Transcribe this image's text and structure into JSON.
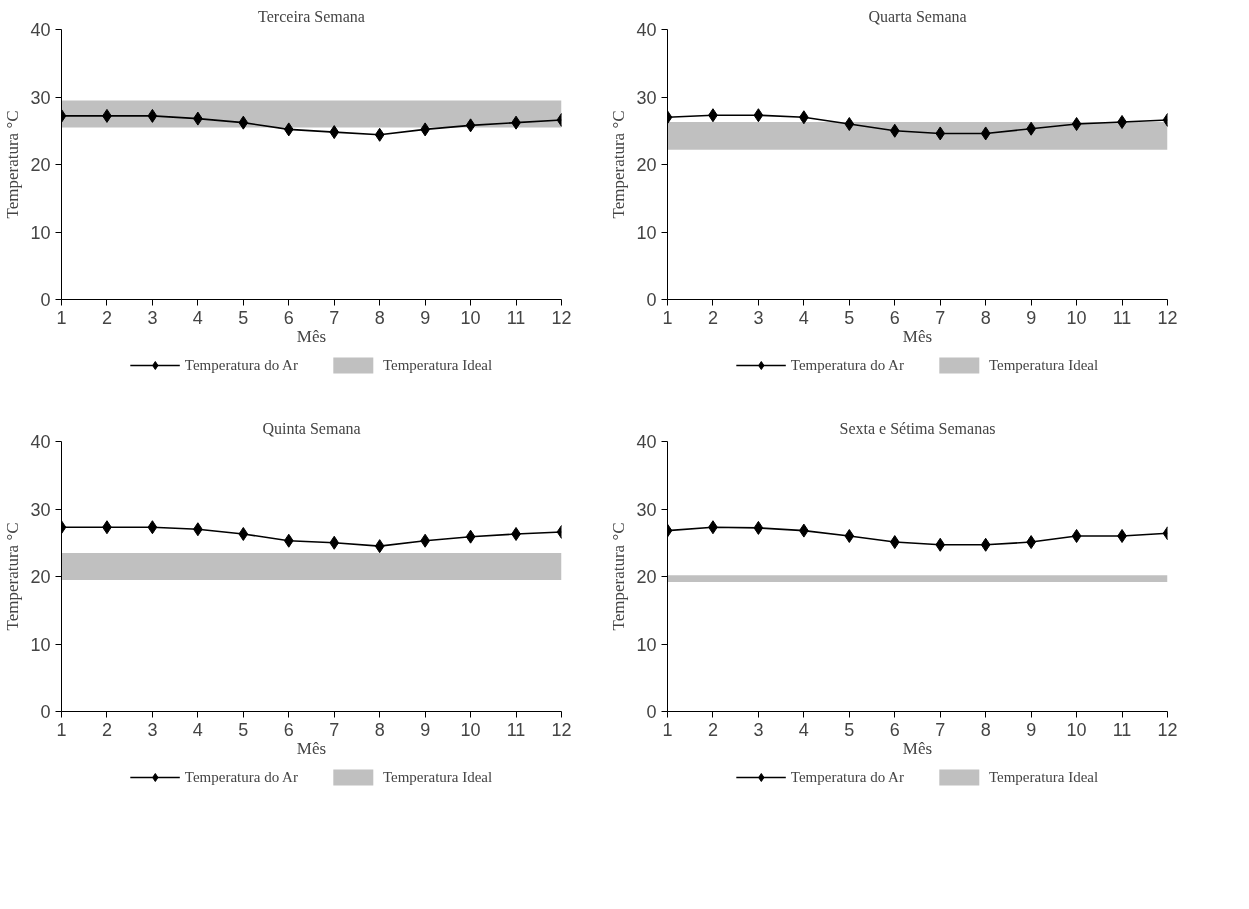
{
  "chart_data": [
    {
      "type": "line",
      "title": "Terceira Semana",
      "xlabel": "Mês",
      "ylabel": "Temperatura °C",
      "x": [
        1,
        2,
        3,
        4,
        5,
        6,
        7,
        8,
        9,
        10,
        11,
        12
      ],
      "xlim": [
        1,
        12
      ],
      "xticks": [
        1,
        2,
        3,
        4,
        5,
        6,
        7,
        8,
        9,
        10,
        11,
        12
      ],
      "ylim": [
        0,
        40
      ],
      "yticks": [
        0,
        10,
        20,
        30,
        40
      ],
      "grid": false,
      "legend": "bottom",
      "marker": "diamond",
      "line_style": "solid",
      "series": [
        {
          "name": "Temperatura do Ar",
          "color": "#000000",
          "values": [
            27.2,
            27.2,
            27.2,
            26.8,
            26.2,
            25.2,
            24.8,
            24.4,
            25.2,
            25.8,
            26.2,
            26.6
          ]
        }
      ],
      "bands": [
        {
          "axis": "y",
          "from": 25.5,
          "to": 29.5,
          "label": "Temperatura Ideal",
          "color": "#c0c0c0"
        }
      ]
    },
    {
      "type": "line",
      "title": "Quarta Semana",
      "xlabel": "Mês",
      "ylabel": "Temperatura °C",
      "x": [
        1,
        2,
        3,
        4,
        5,
        6,
        7,
        8,
        9,
        10,
        11,
        12
      ],
      "xlim": [
        1,
        12
      ],
      "xticks": [
        1,
        2,
        3,
        4,
        5,
        6,
        7,
        8,
        9,
        10,
        11,
        12
      ],
      "ylim": [
        0,
        40
      ],
      "yticks": [
        0,
        10,
        20,
        30,
        40
      ],
      "grid": false,
      "legend": "bottom",
      "marker": "diamond",
      "line_style": "solid",
      "series": [
        {
          "name": "Temperatura do Ar",
          "color": "#000000",
          "values": [
            27.0,
            27.3,
            27.3,
            27.0,
            26.0,
            25.0,
            24.6,
            24.6,
            25.3,
            26.0,
            26.3,
            26.6
          ]
        }
      ],
      "bands": [
        {
          "axis": "y",
          "from": 22.2,
          "to": 26.3,
          "label": "Temperatura Ideal",
          "color": "#c0c0c0"
        }
      ]
    },
    {
      "type": "line",
      "title": "Quinta Semana",
      "xlabel": "Mês",
      "ylabel": "Temperatura °C",
      "x": [
        1,
        2,
        3,
        4,
        5,
        6,
        7,
        8,
        9,
        10,
        11,
        12
      ],
      "xlim": [
        1,
        12
      ],
      "xticks": [
        1,
        2,
        3,
        4,
        5,
        6,
        7,
        8,
        9,
        10,
        11,
        12
      ],
      "ylim": [
        0,
        40
      ],
      "yticks": [
        0,
        10,
        20,
        30,
        40
      ],
      "grid": false,
      "legend": "bottom",
      "marker": "diamond",
      "line_style": "solid",
      "series": [
        {
          "name": "Temperatura do Ar",
          "color": "#000000",
          "values": [
            27.3,
            27.3,
            27.3,
            27.0,
            26.3,
            25.3,
            25.0,
            24.5,
            25.3,
            25.9,
            26.3,
            26.6
          ]
        }
      ],
      "bands": [
        {
          "axis": "y",
          "from": 19.5,
          "to": 23.5,
          "label": "Temperatura Ideal",
          "color": "#c0c0c0"
        }
      ]
    },
    {
      "type": "line",
      "title": "Sexta e Sétima Semanas",
      "xlabel": "Mês",
      "ylabel": "Temperatura °C",
      "x": [
        1,
        2,
        3,
        4,
        5,
        6,
        7,
        8,
        9,
        10,
        11,
        12
      ],
      "xlim": [
        1,
        12
      ],
      "xticks": [
        1,
        2,
        3,
        4,
        5,
        6,
        7,
        8,
        9,
        10,
        11,
        12
      ],
      "ylim": [
        0,
        40
      ],
      "yticks": [
        0,
        10,
        20,
        30,
        40
      ],
      "grid": false,
      "legend": "bottom",
      "marker": "diamond",
      "line_style": "solid",
      "series": [
        {
          "name": "Temperatura do Ar",
          "color": "#000000",
          "values": [
            26.8,
            27.3,
            27.2,
            26.8,
            26.0,
            25.1,
            24.7,
            24.7,
            25.1,
            26.0,
            26.0,
            26.4
          ]
        }
      ],
      "bands": [
        {
          "axis": "y",
          "from": 19.2,
          "to": 20.2,
          "label": "Temperatura Ideal",
          "color": "#c0c0c0"
        }
      ]
    }
  ]
}
